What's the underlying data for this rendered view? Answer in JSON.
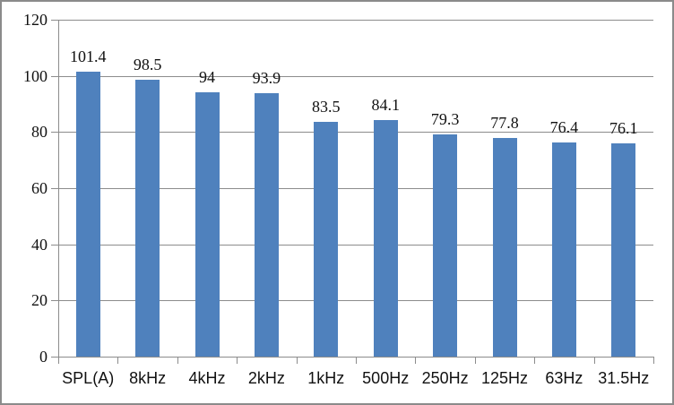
{
  "chart_data": {
    "type": "bar",
    "title": "",
    "categories": [
      "SPL(A)",
      "8kHz",
      "4kHz",
      "2kHz",
      "1kHz",
      "500Hz",
      "250Hz",
      "125Hz",
      "63Hz",
      "31.5Hz"
    ],
    "values": [
      101.4,
      98.5,
      94,
      93.9,
      83.5,
      84.1,
      79.3,
      77.8,
      76.4,
      76.1
    ],
    "data_labels": [
      "101.4",
      "98.5",
      "94",
      "93.9",
      "83.5",
      "84.1",
      "79.3",
      "77.8",
      "76.4",
      "76.1"
    ],
    "ylim": [
      0,
      120
    ],
    "yticks": [
      0,
      20,
      40,
      60,
      80,
      100,
      120
    ],
    "ytick_labels": [
      "0",
      "20",
      "40",
      "60",
      "80",
      "100",
      "120"
    ],
    "grid": true,
    "legend_position": "none",
    "xlabel": "",
    "ylabel": "",
    "colors": {
      "bar_fill": "#4F81BD",
      "gridline": "#8C8C8C",
      "axis": "#8C8C8C",
      "tick": "#8C8C8C",
      "text": "#111111",
      "plot_background": "#FFFFFF",
      "frame_border": "#8B8B8B"
    }
  }
}
